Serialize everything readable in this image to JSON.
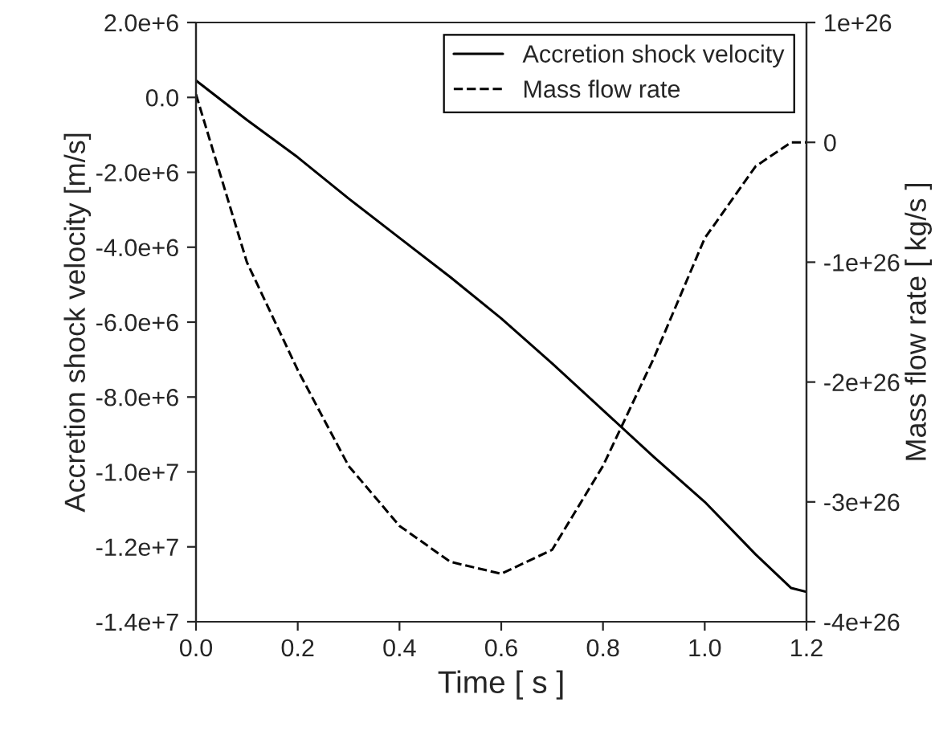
{
  "chart_data": {
    "type": "line",
    "xlabel": "Time [ s ]",
    "ylabel": "Accretion shock velocity [m/s]",
    "y2label": "Mass flow rate [ kg/s ]",
    "x": [
      0,
      0.1,
      0.2,
      0.3,
      0.4,
      0.5,
      0.6,
      0.7,
      0.8,
      0.9,
      1.0,
      1.1,
      1.17,
      1.2
    ],
    "series": [
      {
        "name": "Accretion shock velocity",
        "color": "#000000",
        "line_style": "solid",
        "values": [
          450000,
          -600000,
          -1600000,
          -2700000,
          -3750000,
          -4800000,
          -5900000,
          -7100000,
          -8350000,
          -9600000,
          -10800000,
          -12200000,
          -13100000,
          -13200000
        ]
      },
      {
        "name": "Mass flow rate",
        "color": "#000000",
        "line_style": "dashed",
        "axis": "y2",
        "values": [
          4e+25,
          -1e+26,
          -1.9e+26,
          -2.7e+26,
          -3.2e+26,
          -3.5e+26,
          -3.6e+26,
          -3.4e+26,
          -2.7e+26,
          -1.8e+26,
          -8e+25,
          -2e+25,
          0,
          0
        ]
      }
    ],
    "xlim": [
      0,
      1.2
    ],
    "xticks": [
      {
        "value": 0,
        "label": "0.0"
      },
      {
        "value": 0.2,
        "label": "0.2"
      },
      {
        "value": 0.4,
        "label": "0.4"
      },
      {
        "value": 0.6,
        "label": "0.6"
      },
      {
        "value": 0.8,
        "label": "0.8"
      },
      {
        "value": 1.0,
        "label": "1.0"
      },
      {
        "value": 1.2,
        "label": "1.2"
      }
    ],
    "ylim": [
      -14000000,
      2000000
    ],
    "yticks": [
      {
        "value": 2000000,
        "label": "2.0e+6"
      },
      {
        "value": 0,
        "label": "0.0"
      },
      {
        "value": -2000000,
        "label": "-2.0e+6"
      },
      {
        "value": -4000000,
        "label": "-4.0e+6"
      },
      {
        "value": -6000000,
        "label": "-6.0e+6"
      },
      {
        "value": -8000000,
        "label": "-8.0e+6"
      },
      {
        "value": -10000000,
        "label": "-1.0e+7"
      },
      {
        "value": -12000000,
        "label": "-1.2e+7"
      },
      {
        "value": -14000000,
        "label": "-1.4e+7"
      }
    ],
    "y2lim": [
      -4e+26,
      1e+26
    ],
    "y2ticks": [
      {
        "value": 1e+26,
        "label": "1e+26"
      },
      {
        "value": 0,
        "label": "0"
      },
      {
        "value": -1e+26,
        "label": "-1e+26"
      },
      {
        "value": -2e+26,
        "label": "-2e+26"
      },
      {
        "value": -3e+26,
        "label": "-3e+26"
      },
      {
        "value": -4e+26,
        "label": "-4e+26"
      }
    ],
    "legend": "top right",
    "grid": false
  }
}
